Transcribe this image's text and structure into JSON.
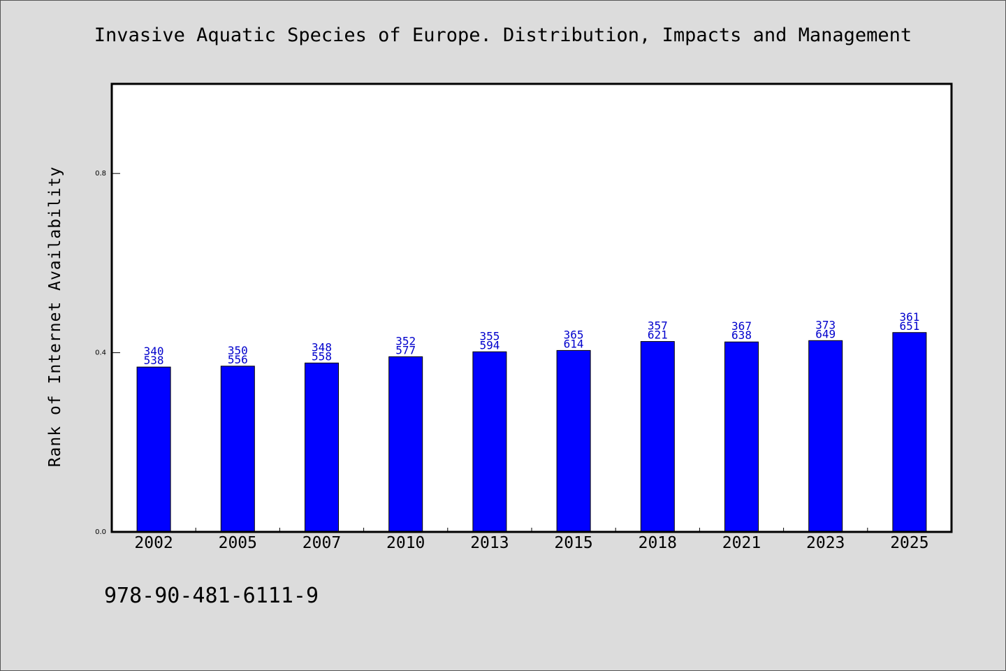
{
  "title": "Invasive Aquatic Species of Europe. Distribution, Impacts and Management",
  "footer_text": "978-90-481-6111-9",
  "colors": {
    "background": "#dcdcdc",
    "plot_background": "#ffffff",
    "bar": "#0000ff",
    "value_label": "#0000cc"
  },
  "chart_data": {
    "type": "bar",
    "title": "Invasive Aquatic Species of Europe. Distribution, Impacts and Management",
    "xlabel": "",
    "ylabel": "Rank of Internet Availability",
    "ylim": [
      0,
      1.0
    ],
    "yticks": [
      0.0,
      0.4,
      0.8
    ],
    "ytick_labels": [
      "0.0",
      "0.4",
      "0.8"
    ],
    "grid": false,
    "categories": [
      "2002",
      "2005",
      "2007",
      "2010",
      "2013",
      "2015",
      "2018",
      "2021",
      "2023",
      "2025"
    ],
    "values": [
      0.368,
      0.37,
      0.377,
      0.391,
      0.402,
      0.405,
      0.425,
      0.424,
      0.427,
      0.445
    ],
    "annotations_top": [
      "340",
      "350",
      "348",
      "352",
      "355",
      "365",
      "357",
      "367",
      "373",
      "361"
    ],
    "annotations_bottom": [
      "538",
      "556",
      "558",
      "577",
      "594",
      "614",
      "621",
      "638",
      "649",
      "651"
    ]
  }
}
